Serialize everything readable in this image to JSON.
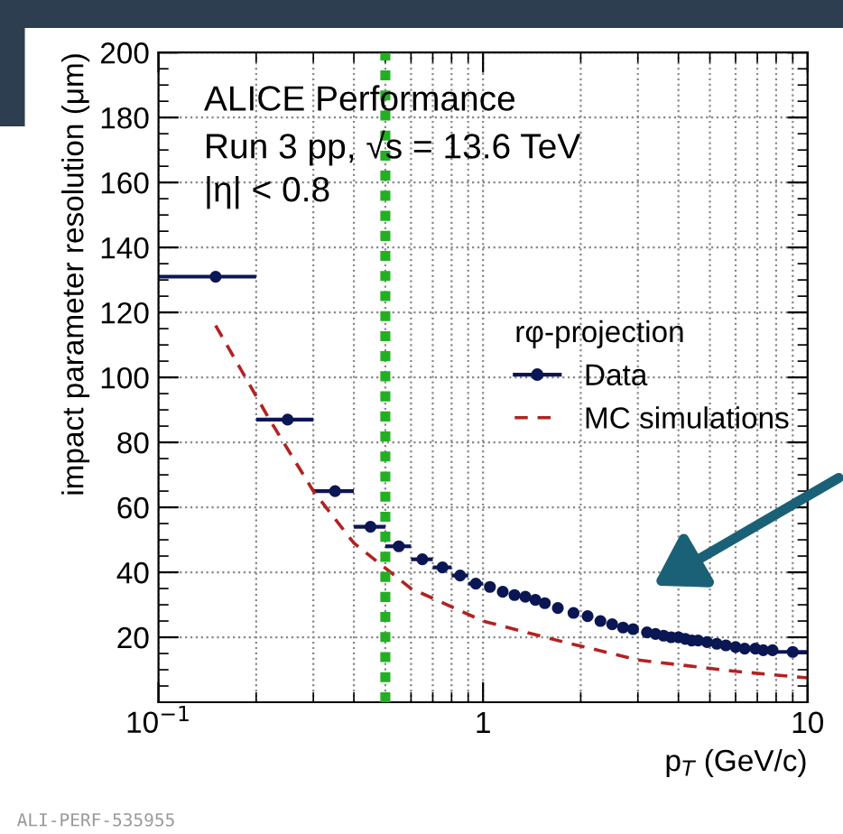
{
  "chart_data": {
    "type": "scatter",
    "xlabel": "p$_{T}$ (GeV/c)",
    "ylabel": "impact parameter resolution (μm)",
    "legend_title": "rφ-projection",
    "annotations": [
      "ALICE Performance",
      "Run 3 pp, √s = 13.6 TeV",
      "|η| < 0.8",
      "ALI-PERF-535955"
    ],
    "series": [
      {
        "name": "Data",
        "color": "#0b1654",
        "marker": "circle",
        "x": [
          0.15,
          0.25,
          0.35,
          0.45,
          0.55,
          0.65,
          0.75,
          0.85,
          0.95,
          1.05,
          1.15,
          1.25,
          1.35,
          1.45,
          1.55,
          1.7,
          1.9,
          2.1,
          2.3,
          2.5,
          2.7,
          2.9,
          3.2,
          3.4,
          3.6,
          3.8,
          4.0,
          4.2,
          4.4,
          4.6,
          4.9,
          5.25,
          5.6,
          6.0,
          6.4,
          6.9,
          7.3,
          7.8,
          9.0
        ],
        "values": [
          131,
          87,
          65,
          54,
          48,
          44,
          41.5,
          39,
          36.5,
          35.5,
          34,
          33,
          32.5,
          31.5,
          30.5,
          29,
          27.5,
          26.5,
          25,
          24,
          23,
          22.5,
          21.5,
          21,
          20.5,
          20,
          20,
          19.5,
          19,
          19,
          18.5,
          18,
          17.5,
          17,
          16.5,
          16.5,
          16,
          16,
          15.5
        ],
        "xerrors": [
          0.05,
          0.05,
          0.05,
          0.05,
          0.05,
          0.05,
          0.05,
          0.05,
          0.05,
          null,
          null,
          null,
          null,
          null,
          null,
          null,
          null,
          null,
          null,
          null,
          null,
          null,
          null,
          null,
          null,
          null,
          null,
          null,
          null,
          null,
          null,
          null,
          null,
          null,
          null,
          null,
          null,
          null,
          [
            1,
            1
          ]
        ]
      },
      {
        "name": "MC simulations",
        "type": "line",
        "color": "#b22222",
        "line_style": "dashed",
        "marker": "none",
        "x": [
          0.15,
          0.22,
          0.3,
          0.4,
          0.6,
          1,
          1.7,
          3,
          6,
          10
        ],
        "values": [
          116,
          87,
          65,
          49,
          35,
          25,
          19,
          13,
          9.5,
          7.5
        ]
      }
    ],
    "log": "x",
    "xlim": [
      0.1,
      10
    ],
    "xticks": [
      {
        "value": 0.1,
        "label": "10$^{−1}$"
      },
      1,
      10
    ],
    "ylim": [
      0,
      200
    ],
    "yticks": [
      20,
      40,
      60,
      80,
      100,
      120,
      140,
      160,
      180,
      200
    ],
    "ref_lines": [
      {
        "axis": "x",
        "value": 0.5,
        "color": "#22b022",
        "line_style": "dotted"
      }
    ],
    "grid": true,
    "legend": "center right"
  }
}
